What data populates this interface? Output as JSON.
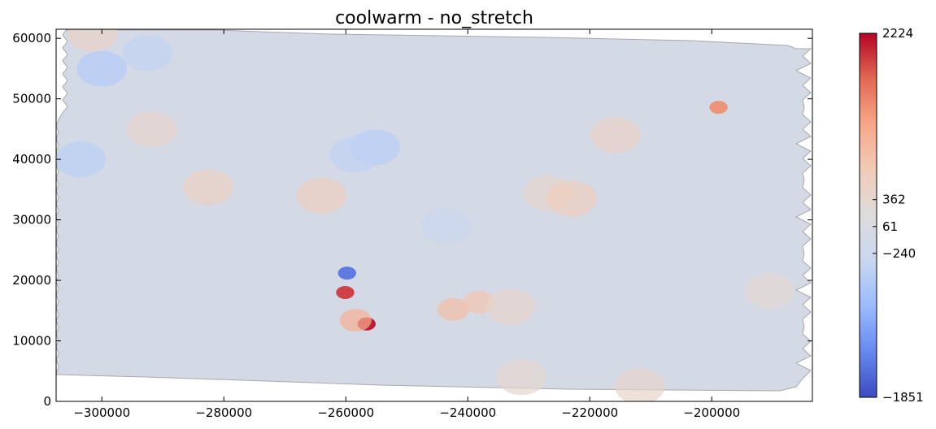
{
  "chart_data": {
    "type": "heatmap",
    "title": "coolwarm - no_stretch",
    "xlabel": "",
    "ylabel": "",
    "colormap": "coolwarm",
    "grid": false,
    "xlim": [
      -307500,
      -183500
    ],
    "ylim": [
      0,
      61500
    ],
    "x_ticks": [
      {
        "value": -300000,
        "label": "−300000"
      },
      {
        "value": -280000,
        "label": "−280000"
      },
      {
        "value": -260000,
        "label": "−260000"
      },
      {
        "value": -240000,
        "label": "−240000"
      },
      {
        "value": -220000,
        "label": "−220000"
      },
      {
        "value": -200000,
        "label": "−200000"
      }
    ],
    "y_ticks": [
      {
        "value": 0,
        "label": "0"
      },
      {
        "value": 10000,
        "label": "10000"
      },
      {
        "value": 20000,
        "label": "20000"
      },
      {
        "value": 30000,
        "label": "30000"
      },
      {
        "value": 40000,
        "label": "40000"
      },
      {
        "value": 50000,
        "label": "50000"
      },
      {
        "value": 60000,
        "label": "60000"
      }
    ],
    "colorbar": {
      "min": -1851,
      "max": 2224,
      "ticks": [
        {
          "value": 2224,
          "label": "2224"
        },
        {
          "value": 362,
          "label": "362"
        },
        {
          "value": 61,
          "label": "61"
        },
        {
          "value": -240,
          "label": "−240"
        },
        {
          "value": -1851,
          "label": "−1851"
        }
      ],
      "colors": [
        "#3b4cc0",
        "#6788ee",
        "#9abbff",
        "#c9d7f0",
        "#dddcdc",
        "#f2cbb7",
        "#f7a889",
        "#e26952",
        "#b40426"
      ]
    },
    "background_value": -60,
    "anomalies": [
      {
        "x": -259800,
        "y": 21200,
        "value": -1500
      },
      {
        "x": -260100,
        "y": 18000,
        "value": 1950
      },
      {
        "x": -256600,
        "y": 12800,
        "value": 2150
      },
      {
        "x": -258400,
        "y": 13400,
        "value": 1100
      },
      {
        "x": -242400,
        "y": 15200,
        "value": 900
      },
      {
        "x": -238200,
        "y": 16400,
        "value": 800
      },
      {
        "x": -233000,
        "y": 15600,
        "value": 420
      },
      {
        "x": -198900,
        "y": 48600,
        "value": 1400
      },
      {
        "x": -215800,
        "y": 44000,
        "value": 500
      },
      {
        "x": -291800,
        "y": 45000,
        "value": 420
      },
      {
        "x": -264000,
        "y": 34000,
        "value": 600
      },
      {
        "x": -282600,
        "y": 35400,
        "value": 550
      },
      {
        "x": -226800,
        "y": 34400,
        "value": 400
      },
      {
        "x": -223000,
        "y": 33500,
        "value": 600
      },
      {
        "x": -211800,
        "y": 2500,
        "value": 420
      },
      {
        "x": -231200,
        "y": 4000,
        "value": 350
      },
      {
        "x": -190600,
        "y": 18200,
        "value": 320
      },
      {
        "x": -301500,
        "y": 60800,
        "value": 500
      },
      {
        "x": -300000,
        "y": 55000,
        "value": -550
      },
      {
        "x": -303500,
        "y": 40000,
        "value": -480
      },
      {
        "x": -255200,
        "y": 42000,
        "value": -500
      },
      {
        "x": -258500,
        "y": 40800,
        "value": -420
      },
      {
        "x": -243500,
        "y": 29000,
        "value": -280
      },
      {
        "x": -292500,
        "y": 57500,
        "value": -400
      }
    ]
  }
}
